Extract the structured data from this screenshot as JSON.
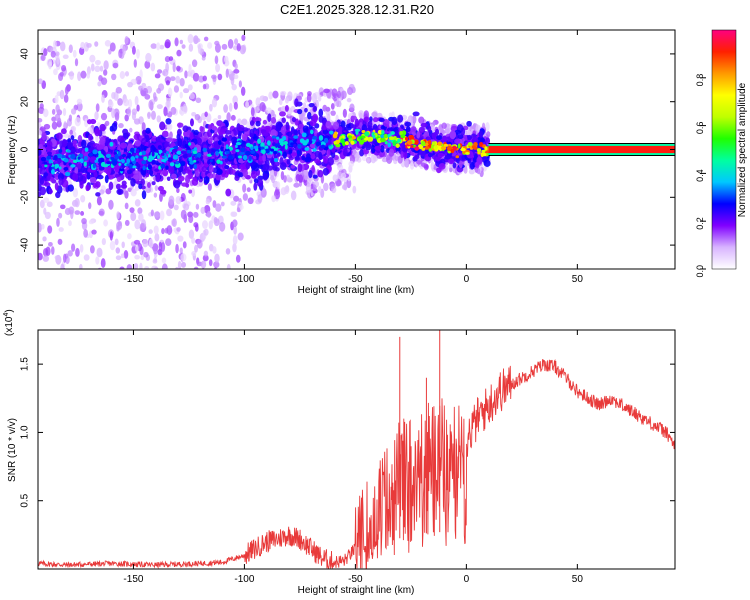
{
  "title": "C2E1.2025.328.12.31.R20",
  "chart_data": [
    {
      "type": "heatmap",
      "title": "C2E1.2025.328.12.31.R20",
      "xlabel": "Height of straight line (km)",
      "ylabel": "Frequency (Hz)",
      "xlim": [
        -193,
        94
      ],
      "ylim": [
        -50,
        50
      ],
      "x_ticks": [
        -150,
        -100,
        -50,
        0,
        50
      ],
      "y_ticks": [
        40,
        20,
        0,
        -20,
        -40
      ],
      "tick_labels_x": [
        "-150",
        "-100",
        "-50",
        "0",
        "50"
      ],
      "tick_labels_y": [
        "40",
        "20",
        "0",
        "-20",
        "-40"
      ],
      "ridge": {
        "description": "dominant frequency track",
        "x": [
          -190,
          -160,
          -130,
          -100,
          -80,
          -60,
          -45,
          -35,
          -25,
          -15,
          -5,
          5,
          10,
          94
        ],
        "y": [
          -5,
          -4,
          -3,
          -1,
          2,
          4,
          5.5,
          5,
          3,
          1.5,
          0.5,
          0,
          0,
          0
        ]
      },
      "colorbar": {
        "label": "Normalized spectral amplitude",
        "range": [
          0,
          1
        ],
        "ticks": [
          0.0,
          0.2,
          0.4,
          0.6,
          0.8
        ],
        "tick_labels": [
          "0.0",
          "0.2",
          "0.4",
          "0.6",
          "0.8"
        ],
        "colormap": [
          "#ffffff",
          "#d8b4ff",
          "#8000ff",
          "#0000ff",
          "#00c8ff",
          "#00ffa0",
          "#20ff00",
          "#c0ff00",
          "#ffff00",
          "#ff9900",
          "#ff2000",
          "#ff0080"
        ]
      }
    },
    {
      "type": "line",
      "xlabel": "Height of straight line (km)",
      "ylabel": "SNR (10 * v/v)",
      "scale_note_base": "(x10",
      "scale_note_exp": "4",
      "scale_note_close": ")",
      "xlim": [
        -193,
        94
      ],
      "ylim": [
        0,
        1.75
      ],
      "x_ticks": [
        -150,
        -100,
        -50,
        0,
        50
      ],
      "y_ticks": [
        0.5,
        1.0,
        1.5
      ],
      "tick_labels_x": [
        "-150",
        "-100",
        "-50",
        "0",
        "50"
      ],
      "tick_labels_y": [
        "0.5",
        "1.0",
        "1.5"
      ],
      "color": "#e83a3a",
      "series": [
        {
          "name": "SNR",
          "x": [
            -193,
            -180,
            -160,
            -140,
            -120,
            -110,
            -100,
            -95,
            -90,
            -85,
            -80,
            -75,
            -70,
            -65,
            -60,
            -55,
            -50,
            -45,
            -40,
            -35,
            -30,
            -25,
            -20,
            -15,
            -10,
            -5,
            0,
            5,
            10,
            15,
            20,
            25,
            30,
            35,
            40,
            45,
            50,
            55,
            60,
            65,
            70,
            75,
            80,
            85,
            90,
            94
          ],
          "y": [
            0.04,
            0.03,
            0.04,
            0.03,
            0.04,
            0.05,
            0.1,
            0.15,
            0.2,
            0.22,
            0.25,
            0.22,
            0.15,
            0.08,
            0.05,
            0.06,
            0.15,
            0.3,
            0.45,
            0.6,
            0.75,
            0.8,
            0.85,
            0.9,
            0.9,
            0.85,
            0.95,
            1.1,
            1.2,
            1.3,
            1.35,
            1.4,
            1.45,
            1.5,
            1.48,
            1.4,
            1.3,
            1.25,
            1.2,
            1.25,
            1.2,
            1.15,
            1.1,
            1.05,
            1.0,
            0.9
          ]
        }
      ],
      "peaks": [
        {
          "x": -30,
          "y": 1.7
        },
        {
          "x": -12,
          "y": 1.75
        },
        {
          "x": -18,
          "y": 1.4
        }
      ]
    }
  ]
}
